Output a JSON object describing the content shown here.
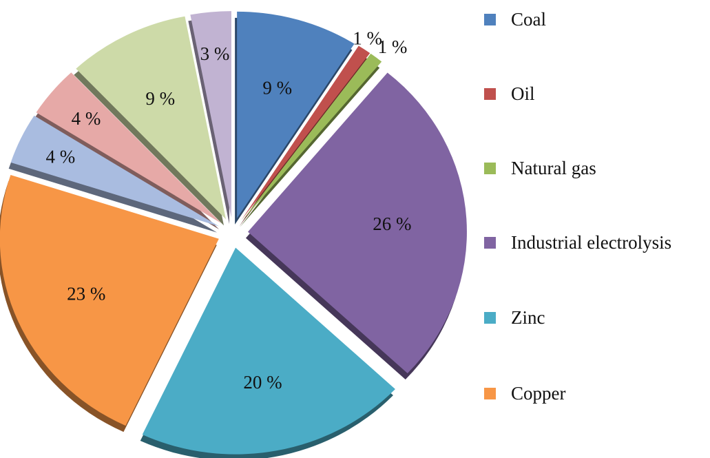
{
  "chart_data": {
    "type": "pie",
    "style": "exploded-3d",
    "title": "",
    "slices": [
      {
        "name": "Coal",
        "value": 9,
        "label": "9 %",
        "color": "#4F81BD"
      },
      {
        "name": "Oil",
        "value": 1,
        "label": "1 %",
        "color": "#C0504D"
      },
      {
        "name": "Natural gas",
        "value": 1,
        "label": "1 %",
        "color": "#9BBB59"
      },
      {
        "name": "Industrial electrolysis",
        "value": 26,
        "label": "26 %",
        "color": "#8064A2"
      },
      {
        "name": "Zinc",
        "value": 20,
        "label": "20 %",
        "color": "#4BACC6"
      },
      {
        "name": "Copper",
        "value": 23,
        "label": "23 %",
        "color": "#F79646"
      },
      {
        "name": null,
        "value": 4,
        "label": "4 %",
        "color": "#A9BCE0"
      },
      {
        "name": null,
        "value": 4,
        "label": "4 %",
        "color": "#E6A9A7"
      },
      {
        "name": null,
        "value": 9,
        "label": "9 %",
        "color": "#CDDAA8"
      },
      {
        "name": null,
        "value": 3,
        "label": "3 %",
        "color": "#C1B3D2"
      }
    ],
    "legend": {
      "placement": "right",
      "entries": [
        "Coal",
        "Oil",
        "Natural gas",
        "Industrial electrolysis",
        "Zinc",
        "Copper"
      ]
    }
  }
}
